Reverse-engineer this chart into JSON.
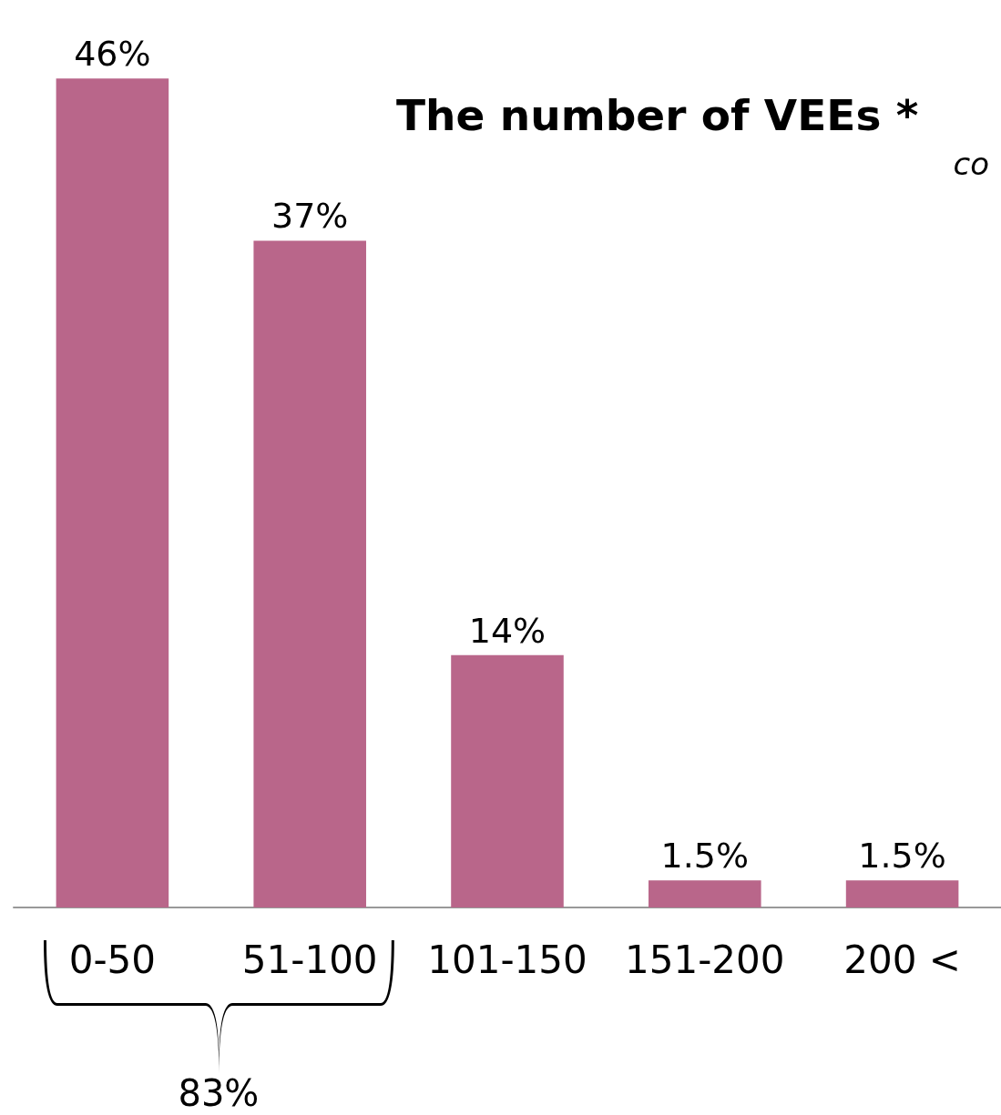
{
  "chart_data": {
    "type": "bar",
    "title": "The number of VEEs *",
    "subtitle": "co",
    "categories": [
      "0-50",
      "51-100",
      "101-150",
      "151-200",
      "200 <"
    ],
    "values": [
      46,
      37,
      14,
      1.5,
      1.5
    ],
    "value_labels": [
      "46%",
      "37%",
      "14%",
      "1.5%",
      "1.5%"
    ],
    "color": "#b9668a",
    "annotations": [
      "83%"
    ]
  }
}
